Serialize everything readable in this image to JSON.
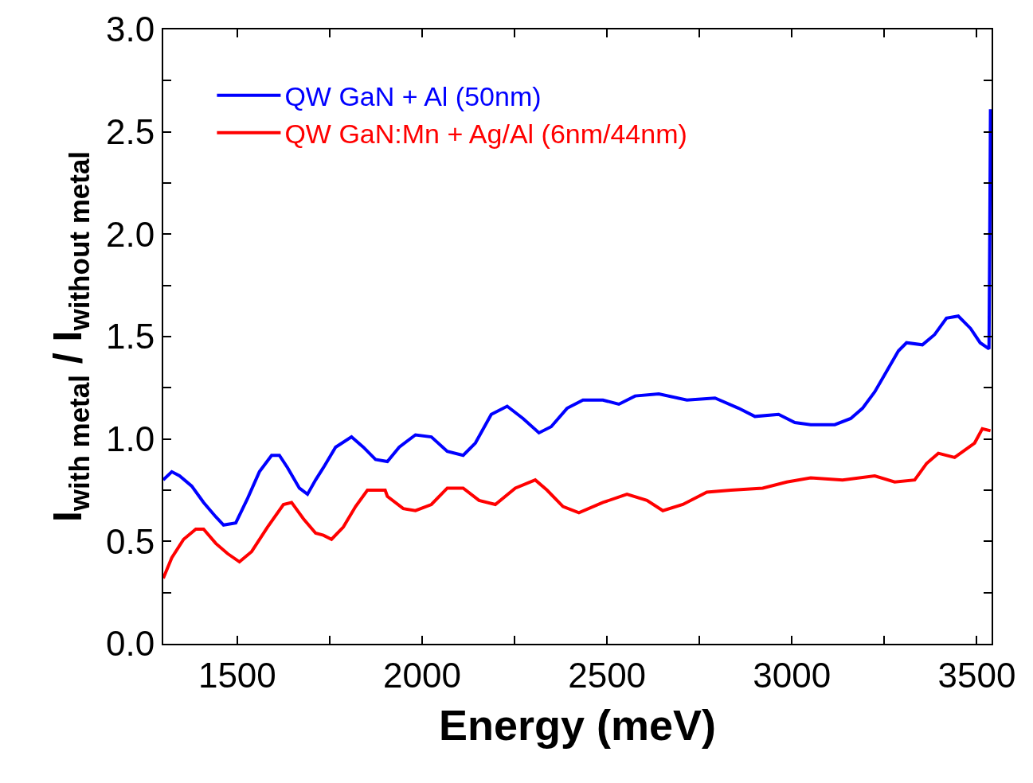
{
  "chart_data": {
    "type": "line",
    "xlabel": "Energy (meV)",
    "ylabel": "I$_{with metal}$ / I$_{without metal}$",
    "xlim": [
      1300,
      3540
    ],
    "ylim": [
      0,
      3.0
    ],
    "xticks": [
      1500,
      {
        "value": 1750,
        "label": null
      },
      2000,
      {
        "value": 2250,
        "label": null
      },
      2500,
      {
        "value": 2750,
        "label": null
      },
      3000,
      {
        "value": 3250,
        "label": null
      },
      3500
    ],
    "yticks": [
      {
        "value": 0,
        "label": "0.0"
      },
      {
        "value": 0.25,
        "label": null
      },
      0.5,
      {
        "value": 0.75,
        "label": null
      },
      {
        "value": 1.0,
        "label": "1.0"
      },
      {
        "value": 1.25,
        "label": null
      },
      1.5,
      {
        "value": 1.75,
        "label": null
      },
      {
        "value": 2.0,
        "label": "2.0"
      },
      {
        "value": 2.25,
        "label": null
      },
      2.5,
      {
        "value": 2.75,
        "label": null
      },
      {
        "value": 3.0,
        "label": "3.0"
      }
    ],
    "legend": "top left",
    "line_style": "solid",
    "marker": "none",
    "series": [
      {
        "name": "QW GaN + Al (50nm)",
        "color": "#0000ff",
        "x": [
          1300,
          1323,
          1344,
          1377,
          1409,
          1442,
          1463,
          1496,
          1528,
          1560,
          1593,
          1614,
          1636,
          1668,
          1690,
          1712,
          1733,
          1766,
          1809,
          1841,
          1874,
          1906,
          1938,
          1982,
          2025,
          2068,
          2111,
          2144,
          2187,
          2230,
          2273,
          2316,
          2349,
          2392,
          2435,
          2489,
          2532,
          2576,
          2640,
          2716,
          2792,
          2856,
          2900,
          2964,
          3008,
          3051,
          3116,
          3159,
          3191,
          3224,
          3256,
          3288,
          3310,
          3353,
          3386,
          3418,
          3450,
          3483,
          3509,
          3533,
          3535,
          3537
        ],
        "values": [
          0.8,
          0.84,
          0.82,
          0.77,
          0.69,
          0.62,
          0.58,
          0.59,
          0.71,
          0.84,
          0.92,
          0.92,
          0.86,
          0.76,
          0.73,
          0.8,
          0.86,
          0.96,
          1.01,
          0.96,
          0.9,
          0.89,
          0.96,
          1.02,
          1.01,
          0.94,
          0.92,
          0.98,
          1.12,
          1.16,
          1.1,
          1.03,
          1.06,
          1.15,
          1.19,
          1.19,
          1.17,
          1.21,
          1.22,
          1.19,
          1.2,
          1.15,
          1.11,
          1.12,
          1.08,
          1.07,
          1.07,
          1.1,
          1.15,
          1.23,
          1.33,
          1.43,
          1.47,
          1.46,
          1.51,
          1.59,
          1.6,
          1.54,
          1.47,
          1.44,
          1.97,
          2.61
        ]
      },
      {
        "name": "QW GaN:Mn + Ag/Al (6nm/44nm)",
        "color": "#ff0000",
        "x": [
          1300,
          1323,
          1355,
          1388,
          1409,
          1442,
          1474,
          1506,
          1539,
          1582,
          1625,
          1647,
          1679,
          1712,
          1733,
          1755,
          1787,
          1820,
          1852,
          1884,
          1900,
          1906,
          1949,
          1982,
          2025,
          2068,
          2111,
          2154,
          2198,
          2252,
          2306,
          2338,
          2381,
          2424,
          2489,
          2554,
          2608,
          2651,
          2705,
          2770,
          2835,
          2921,
          2986,
          3051,
          3137,
          3224,
          3278,
          3332,
          3364,
          3396,
          3440,
          3494,
          3515,
          3537
        ],
        "values": [
          0.32,
          0.42,
          0.51,
          0.56,
          0.56,
          0.49,
          0.44,
          0.4,
          0.45,
          0.57,
          0.68,
          0.69,
          0.61,
          0.54,
          0.53,
          0.51,
          0.57,
          0.67,
          0.75,
          0.75,
          0.75,
          0.72,
          0.66,
          0.65,
          0.68,
          0.76,
          0.76,
          0.7,
          0.68,
          0.76,
          0.8,
          0.75,
          0.67,
          0.64,
          0.69,
          0.73,
          0.7,
          0.65,
          0.68,
          0.74,
          0.75,
          0.76,
          0.79,
          0.81,
          0.8,
          0.82,
          0.79,
          0.8,
          0.88,
          0.93,
          0.91,
          0.98,
          1.05,
          1.04
        ]
      }
    ]
  }
}
